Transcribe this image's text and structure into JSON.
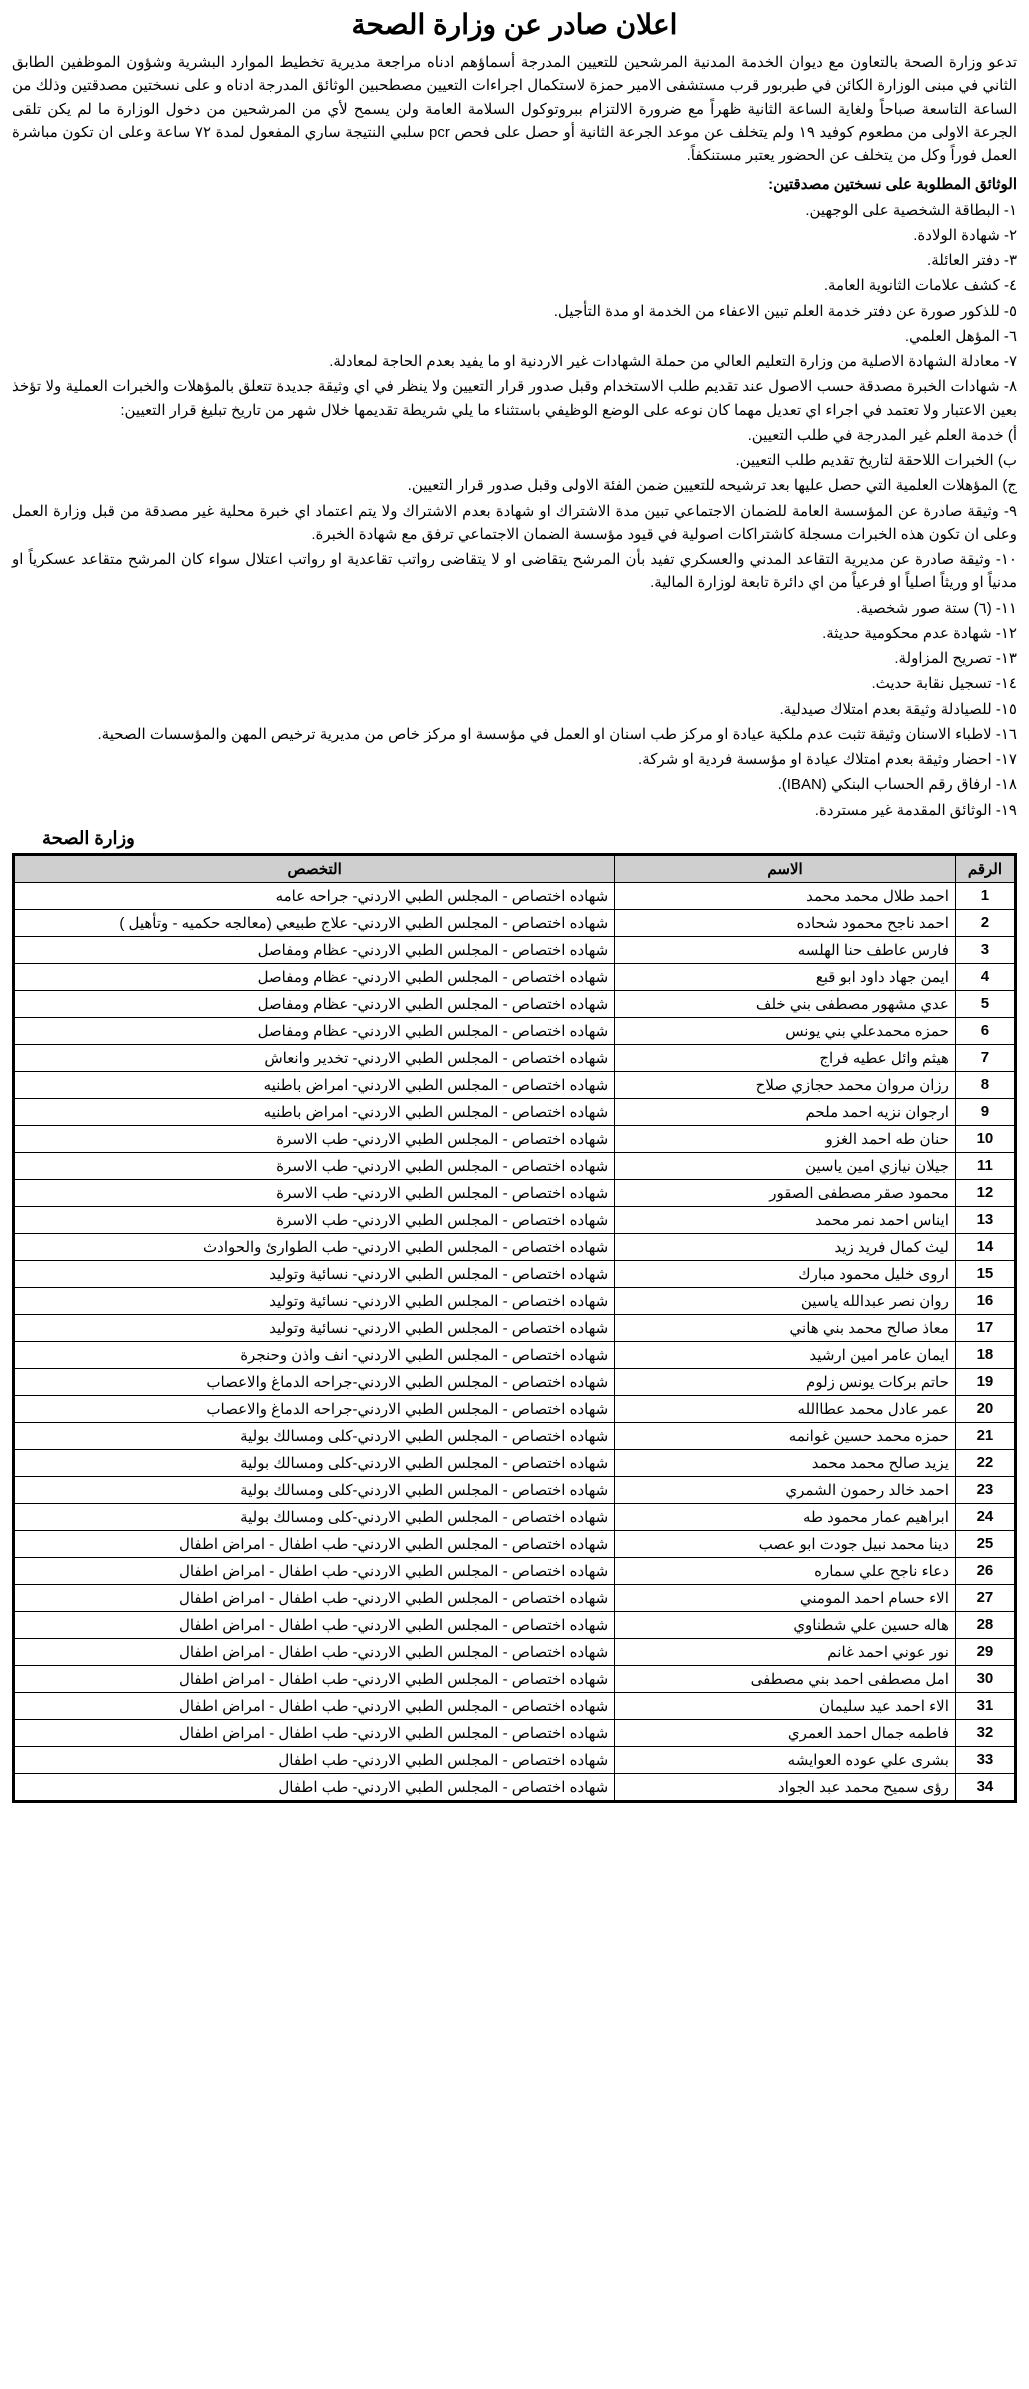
{
  "title": "اعلان صادر عن وزارة الصحة",
  "intro": "تدعو وزارة الصحة بالتعاون مع ديوان الخدمة المدنية المرشحين للتعيين المدرجة أسماؤهم ادناه مراجعة مديرية تخطيط الموارد البشرية وشؤون الموظفين الطابق الثاني في مبنى الوزارة الكائن في طبربور قرب مستشفى الامير حمزة لاستكمال اجراءات التعيين مصطحبين الوثائق المدرجة ادناه و على نسختين مصدقتين وذلك من الساعة التاسعة صباحاً ولغاية الساعة الثانية ظهراً مع ضرورة الالتزام ببروتوكول السلامة العامة ولن يسمح لأي من المرشحين من دخول الوزارة ما لم يكن تلقى الجرعة الاولى من مطعوم كوفيد ١٩ ولم يتخلف عن موعد الجرعة الثانية أو حصل على فحص pcr سلبي النتيجة ساري المفعول لمدة ٧٢ ساعة وعلى ان تكون مباشرة العمل فوراً وكل من يتخلف عن الحضور يعتبر مستنكفاً.",
  "docs_heading": "الوثائق المطلوبة على نسختين مصدقتين:",
  "docs": [
    "١- البطاقة الشخصية على الوجهين.",
    "٢- شهادة الولادة.",
    "٣- دفتر العائلة.",
    "٤- كشف علامات الثانوية العامة.",
    "٥- للذكور صورة عن دفتر خدمة العلم تبين الاعفاء من الخدمة او مدة التأجيل.",
    "٦- المؤهل العلمي.",
    "٧- معادلة الشهادة الاصلية من وزارة التعليم العالي من حملة الشهادات غير الاردنية او ما يفيد بعدم الحاجة لمعادلة.",
    "٨- شهادات الخبرة مصدقة حسب الاصول عند تقديم طلب الاستخدام وقبل صدور قرار التعيين ولا ينظر في اي وثيقة جديدة تتعلق بالمؤهلات والخبرات العملية ولا تؤخذ بعين الاعتبار ولا تعتمد في اجراء اي تعديل مهما كان نوعه على الوضع الوظيفي باستثناء ما يلي شريطة تقديمها خلال شهر من تاريخ تبليغ قرار التعيين:",
    "أ) خدمة العلم غير المدرجة في طلب التعيين.",
    "ب) الخبرات اللاحقة لتاريخ تقديم طلب التعيين.",
    "ج) المؤهلات العلمية التي حصل عليها بعد ترشيحه للتعيين ضمن الفئة الاولى وقبل صدور قرار التعيين.",
    "٩- وثيقة صادرة عن المؤسسة العامة للضمان الاجتماعي تبين مدة الاشتراك او شهادة بعدم الاشتراك ولا يتم اعتماد اي خبرة محلية غير مصدقة من قبل وزارة العمل وعلى ان تكون هذه الخبرات مسجلة كاشتراكات اصولية في قيود مؤسسة الضمان الاجتماعي ترفق مع شهادة الخبرة.",
    "١٠- وثيقة صادرة عن مديرية التقاعد المدني والعسكري تفيد بأن المرشح يتقاضى او لا يتقاضى رواتب تقاعدية او رواتب اعتلال سواء كان المرشح متقاعد عسكرياً او مدنياً او وريثاً اصلياً او فرعياً من اي دائرة تابعة لوزارة المالية.",
    "١١- (٦) ستة صور شخصية.",
    "١٢- شهادة عدم محكومية حديثة.",
    "١٣- تصريح المزاولة.",
    "١٤- تسجيل نقابة حديث.",
    "١٥- للصيادلة وثيقة بعدم امتلاك صيدلية.",
    "١٦- لاطباء الاسنان وثيقة تثبت عدم ملكية عيادة او مركز طب اسنان او العمل في مؤسسة او مركز خاص من مديرية ترخيص المهن والمؤسسات الصحية.",
    "١٧- احضار وثيقة بعدم امتلاك عيادة او مؤسسة فردية او شركة.",
    "١٨- ارفاق رقم الحساب البنكي (IBAN).",
    "١٩- الوثائق المقدمة غير مستردة."
  ],
  "footer": "وزارة الصحة",
  "table": {
    "header_background": "#cfcfcf",
    "border_color": "#000000",
    "columns": [
      "الرقم",
      "الاسم",
      "التخصص"
    ],
    "rows": [
      {
        "num": "1",
        "name": "احمد طلال محمد محمد",
        "spec": "شهاده اختصاص  - المجلس الطبي الاردني- جراحه عامه"
      },
      {
        "num": "2",
        "name": "احمد ناجح محمود شحاده",
        "spec": "شهاده اختصاص  - المجلس الطبي الاردني-  علاج طبيعي (معالجه حكميه - وتأهيل )"
      },
      {
        "num": "3",
        "name": "فارس عاطف حنا الهلسه",
        "spec": "شهاده اختصاص  - المجلس الطبي الاردني- عظام ومفاصل"
      },
      {
        "num": "4",
        "name": "ايمن جهاد داود ابو قبع",
        "spec": "شهاده اختصاص  - المجلس الطبي الاردني- عظام ومفاصل"
      },
      {
        "num": "5",
        "name": "عدي مشهور مصطفى بني خلف",
        "spec": "شهاده اختصاص  - المجلس الطبي الاردني- عظام ومفاصل"
      },
      {
        "num": "6",
        "name": "حمزه محمدعلي بني يونس",
        "spec": "شهاده اختصاص  - المجلس الطبي الاردني- عظام ومفاصل"
      },
      {
        "num": "7",
        "name": "هيثم وائل عطيه فراج",
        "spec": "شهاده اختصاص  - المجلس الطبي الاردني- تخدير وانعاش"
      },
      {
        "num": "8",
        "name": "رزان مروان محمد حجازي صلاح",
        "spec": "شهاده اختصاص  - المجلس الطبي الاردني- امراض باطنيه"
      },
      {
        "num": "9",
        "name": "ارجوان نزيه احمد ملحم",
        "spec": "شهاده اختصاص  - المجلس الطبي الاردني- امراض باطنيه"
      },
      {
        "num": "10",
        "name": "حنان طه احمد الغزو",
        "spec": "شهاده اختصاص  - المجلس الطبي الاردني-  طب الاسرة"
      },
      {
        "num": "11",
        "name": "جيلان نيازي امين ياسين",
        "spec": "شهاده اختصاص  - المجلس الطبي الاردني-  طب الاسرة"
      },
      {
        "num": "12",
        "name": "محمود صقر مصطفى الصقور",
        "spec": "شهاده اختصاص  - المجلس الطبي الاردني-  طب الاسرة"
      },
      {
        "num": "13",
        "name": "ايناس احمد نمر محمد",
        "spec": "شهاده اختصاص  - المجلس الطبي الاردني-  طب الاسرة"
      },
      {
        "num": "14",
        "name": "ليث كمال فريد زيد",
        "spec": "شهاده اختصاص  - المجلس الطبي الاردني-  طب الطوارئ والحوادث"
      },
      {
        "num": "15",
        "name": "اروى خليل محمود مبارك",
        "spec": "شهاده اختصاص  - المجلس الطبي الاردني-  نسائية وتوليد"
      },
      {
        "num": "16",
        "name": "روان نصر عبدالله ياسين",
        "spec": "شهاده اختصاص  - المجلس الطبي الاردني-  نسائية وتوليد"
      },
      {
        "num": "17",
        "name": "معاذ صالح محمد بني هاني",
        "spec": "شهاده اختصاص  - المجلس الطبي الاردني- نسائية وتوليد"
      },
      {
        "num": "18",
        "name": "ايمان عامر امين ارشيد",
        "spec": "شهاده اختصاص  - المجلس الطبي الاردني- انف واذن وحنجرة"
      },
      {
        "num": "19",
        "name": "حاتم بركات يونس زلوم",
        "spec": "شهاده اختصاص  - المجلس الطبي الاردني-جراحه الدماغ والاعصاب"
      },
      {
        "num": "20",
        "name": "عمر عادل محمد عطاالله",
        "spec": "شهاده اختصاص  - المجلس الطبي الاردني-جراحه الدماغ والاعصاب"
      },
      {
        "num": "21",
        "name": "حمزه محمد حسين غوانمه",
        "spec": "شهاده اختصاص  - المجلس الطبي الاردني-كلى ومسالك بولية"
      },
      {
        "num": "22",
        "name": "يزيد صالح  محمد محمد",
        "spec": "شهاده اختصاص  - المجلس الطبي الاردني-كلى ومسالك بولية"
      },
      {
        "num": "23",
        "name": "احمد خالد رحمون الشمري",
        "spec": "شهاده اختصاص  - المجلس الطبي الاردني-كلى ومسالك بولية"
      },
      {
        "num": "24",
        "name": "ابراهيم عمار محمود طه",
        "spec": "شهاده اختصاص  - المجلس الطبي الاردني-كلى ومسالك بولية"
      },
      {
        "num": "25",
        "name": "دينا محمد نبيل جودت ابو عصب",
        "spec": "شهاده اختصاص  - المجلس الطبي الاردني- طب اطفال - امراض اطفال"
      },
      {
        "num": "26",
        "name": "دعاء ناجح علي سماره",
        "spec": "شهاده اختصاص  - المجلس الطبي الاردني- طب اطفال - امراض اطفال"
      },
      {
        "num": "27",
        "name": "الاء حسام احمد المومني",
        "spec": "شهاده اختصاص  - المجلس الطبي الاردني- طب اطفال - امراض اطفال"
      },
      {
        "num": "28",
        "name": "هاله حسين علي شطناوي",
        "spec": "شهاده اختصاص  - المجلس الطبي الاردني- طب اطفال - امراض اطفال"
      },
      {
        "num": "29",
        "name": "نور عوني احمد غانم",
        "spec": "شهاده اختصاص  - المجلس الطبي الاردني- طب اطفال - امراض اطفال"
      },
      {
        "num": "30",
        "name": "امل مصطفى احمد بني مصطفى",
        "spec": "شهاده اختصاص  - المجلس الطبي الاردني-  طب اطفال - امراض اطفال"
      },
      {
        "num": "31",
        "name": "الاء احمد عيد سليمان",
        "spec": "شهاده اختصاص  - المجلس الطبي الاردني-  طب اطفال - امراض اطفال"
      },
      {
        "num": "32",
        "name": "فاطمه جمال احمد العمري",
        "spec": "شهاده اختصاص  - المجلس الطبي الاردني-  طب اطفال - امراض اطفال"
      },
      {
        "num": "33",
        "name": "بشرى علي عوده العوايشه",
        "spec": "شهاده اختصاص  - المجلس الطبي الاردني- طب اطفال"
      },
      {
        "num": "34",
        "name": "رؤى سميح محمد عبد الجواد",
        "spec": "شهاده اختصاص  - المجلس الطبي الاردني- طب اطفال"
      }
    ]
  }
}
